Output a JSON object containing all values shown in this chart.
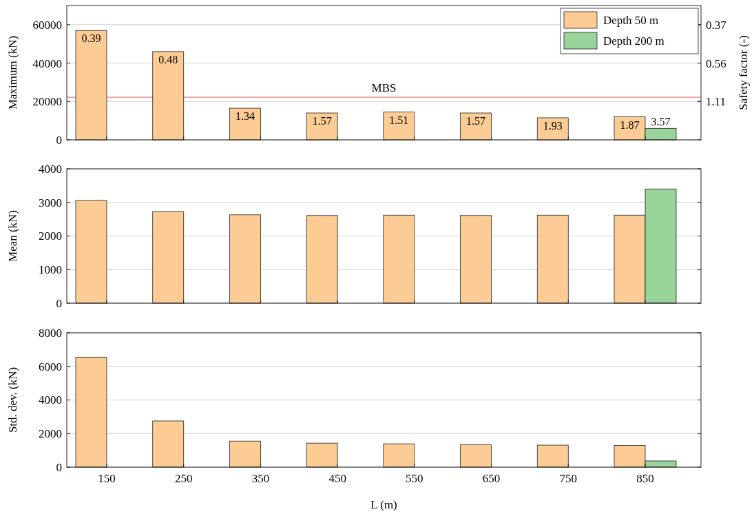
{
  "chart_data": [
    {
      "type": "bar",
      "categories": [
        "150",
        "250",
        "350",
        "450",
        "550",
        "650",
        "750",
        "850"
      ],
      "ylabel": "Maximum (kN)",
      "y2label": "Safety factor (-)",
      "ylim": [
        0,
        70000
      ],
      "yticks": [
        0,
        20000,
        40000,
        60000
      ],
      "annotations": [
        "1.11",
        "0.56",
        "0.37",
        {
          "text": "0.39",
          "x": "150",
          "y": 57000
        },
        {
          "text": "0.48",
          "x": "250",
          "y": 46000
        },
        {
          "text": "1.34",
          "x": "350",
          "y": 16500
        },
        {
          "text": "1.57",
          "x": "450",
          "y": 14000
        },
        {
          "text": "1.51",
          "x": "550",
          "y": 14500
        },
        {
          "text": "1.57",
          "x": "650",
          "y": 14000
        },
        {
          "text": "1.93",
          "x": "750",
          "y": 11500
        },
        {
          "text": "1.87",
          "x": "850",
          "y": 12000
        },
        {
          "text": "3.57",
          "x": "850",
          "y": 6000
        }
      ],
      "grid": "y",
      "legend": "top right",
      "tick_labels": "y",
      "ref_lines": [
        {
          "axis": "y",
          "value": 22200,
          "label": "MBS",
          "color": "#f08080"
        }
      ],
      "series": [
        {
          "name": "Depth 50 m",
          "color": "#fdcb94",
          "values": [
            57000,
            46000,
            16500,
            14000,
            14500,
            14000,
            11500,
            12000
          ]
        },
        {
          "name": "Depth 200 m",
          "color": "#99d49a",
          "values": [
            null,
            null,
            null,
            null,
            null,
            null,
            null,
            6000
          ]
        }
      ]
    },
    {
      "type": "bar",
      "categories": [
        "150",
        "250",
        "350",
        "450",
        "550",
        "650",
        "750",
        "850"
      ],
      "ylabel": "Mean (kN)",
      "ylim": [
        0,
        4000
      ],
      "yticks": [
        0,
        1000,
        2000,
        3000,
        4000
      ],
      "grid": "y",
      "tick_labels": "y",
      "series": [
        {
          "color": "#fdcb94",
          "values": [
            3060,
            2730,
            2630,
            2610,
            2620,
            2610,
            2620,
            2620
          ]
        },
        {
          "color": "#99d49a",
          "values": [
            null,
            null,
            null,
            null,
            null,
            null,
            null,
            3400
          ]
        }
      ]
    },
    {
      "type": "bar",
      "categories": [
        "150",
        "250",
        "350",
        "450",
        "550",
        "650",
        "750",
        "850"
      ],
      "ylabel": "Std. dev. (kN)",
      "xlabel": "L (m)",
      "ylim": [
        0,
        8000
      ],
      "yticks": [
        0,
        2000,
        4000,
        6000,
        8000
      ],
      "grid": "y",
      "series": [
        {
          "color": "#fdcb94",
          "values": [
            6550,
            2750,
            1550,
            1430,
            1390,
            1340,
            1310,
            1290
          ]
        },
        {
          "color": "#99d49a",
          "values": [
            null,
            null,
            null,
            null,
            null,
            null,
            null,
            370
          ]
        }
      ]
    }
  ]
}
